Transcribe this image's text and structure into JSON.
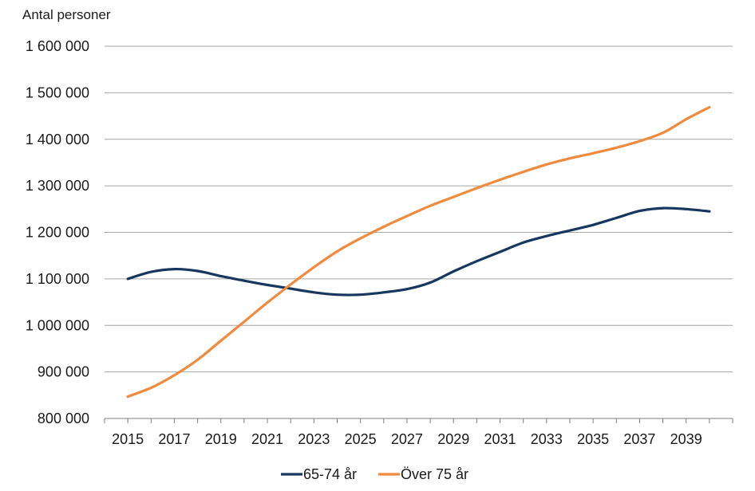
{
  "chart_data": {
    "type": "line",
    "ylabel": "Antal personer",
    "ylim": [
      800000,
      1600000
    ],
    "yticks": [
      800000,
      900000,
      1000000,
      1100000,
      1200000,
      1300000,
      1400000,
      1500000,
      1600000
    ],
    "ytick_labels": [
      "800 000",
      "900 000",
      "1 000 000",
      "1 100 000",
      "1 200 000",
      "1 300 000",
      "1 400 000",
      "1 500 000",
      "1 600 000"
    ],
    "x": [
      2015,
      2016,
      2017,
      2018,
      2019,
      2020,
      2021,
      2022,
      2023,
      2024,
      2025,
      2026,
      2027,
      2028,
      2029,
      2030,
      2031,
      2032,
      2033,
      2034,
      2035,
      2036,
      2037,
      2038,
      2039,
      2040
    ],
    "xtick_labels": [
      "2015",
      "2017",
      "2019",
      "2021",
      "2023",
      "2025",
      "2027",
      "2029",
      "2031",
      "2033",
      "2035",
      "2037",
      "2039"
    ],
    "grid": true,
    "legend_position": "bottom",
    "series": [
      {
        "name": "65-74 år",
        "color": "#17375e",
        "values": [
          1100000,
          1115000,
          1121000,
          1117000,
          1106000,
          1096000,
          1087000,
          1079000,
          1071000,
          1066000,
          1066000,
          1071000,
          1078000,
          1092000,
          1116000,
          1138000,
          1158000,
          1178000,
          1192000,
          1204000,
          1216000,
          1231000,
          1246000,
          1252000,
          1250000,
          1245000
        ]
      },
      {
        "name": "Över 75 år",
        "color": "#f08a3c",
        "values": [
          847000,
          866000,
          893000,
          926000,
          967000,
          1008000,
          1049000,
          1088000,
          1125000,
          1159000,
          1187000,
          1212000,
          1235000,
          1257000,
          1276000,
          1295000,
          1313000,
          1330000,
          1346000,
          1359000,
          1370000,
          1382000,
          1396000,
          1414000,
          1443000,
          1469000
        ]
      }
    ]
  }
}
